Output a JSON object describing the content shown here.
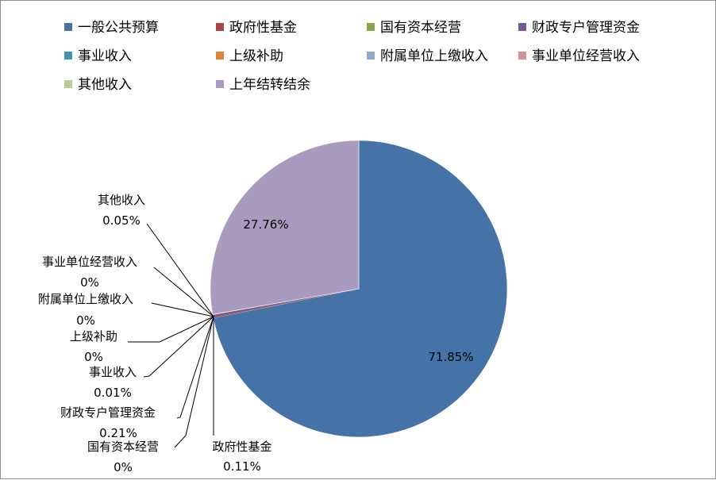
{
  "chart_data": {
    "type": "pie",
    "categories": [
      "一般公共预算",
      "政府性基金",
      "国有资本经营",
      "财政专户管理资金",
      "事业收入",
      "上级补助",
      "附属单位上缴收入",
      "事业单位经营收入",
      "其他收入",
      "上年结转结余"
    ],
    "values": [
      71.85,
      0.11,
      0,
      0.21,
      0.01,
      0,
      0,
      0,
      0.05,
      27.76
    ],
    "value_labels": [
      "71.85%",
      "0.11%",
      "0%",
      "0.21%",
      "0.01%",
      "0%",
      "0%",
      "0%",
      "0.05%",
      "27.76%"
    ],
    "colors": [
      "#4572A7",
      "#AA4643",
      "#89A54E",
      "#71588F",
      "#4198AF",
      "#DB843D",
      "#93A9CF",
      "#D19392",
      "#B9CD96",
      "#A99BBD"
    ],
    "legend_position": "top",
    "title": ""
  }
}
